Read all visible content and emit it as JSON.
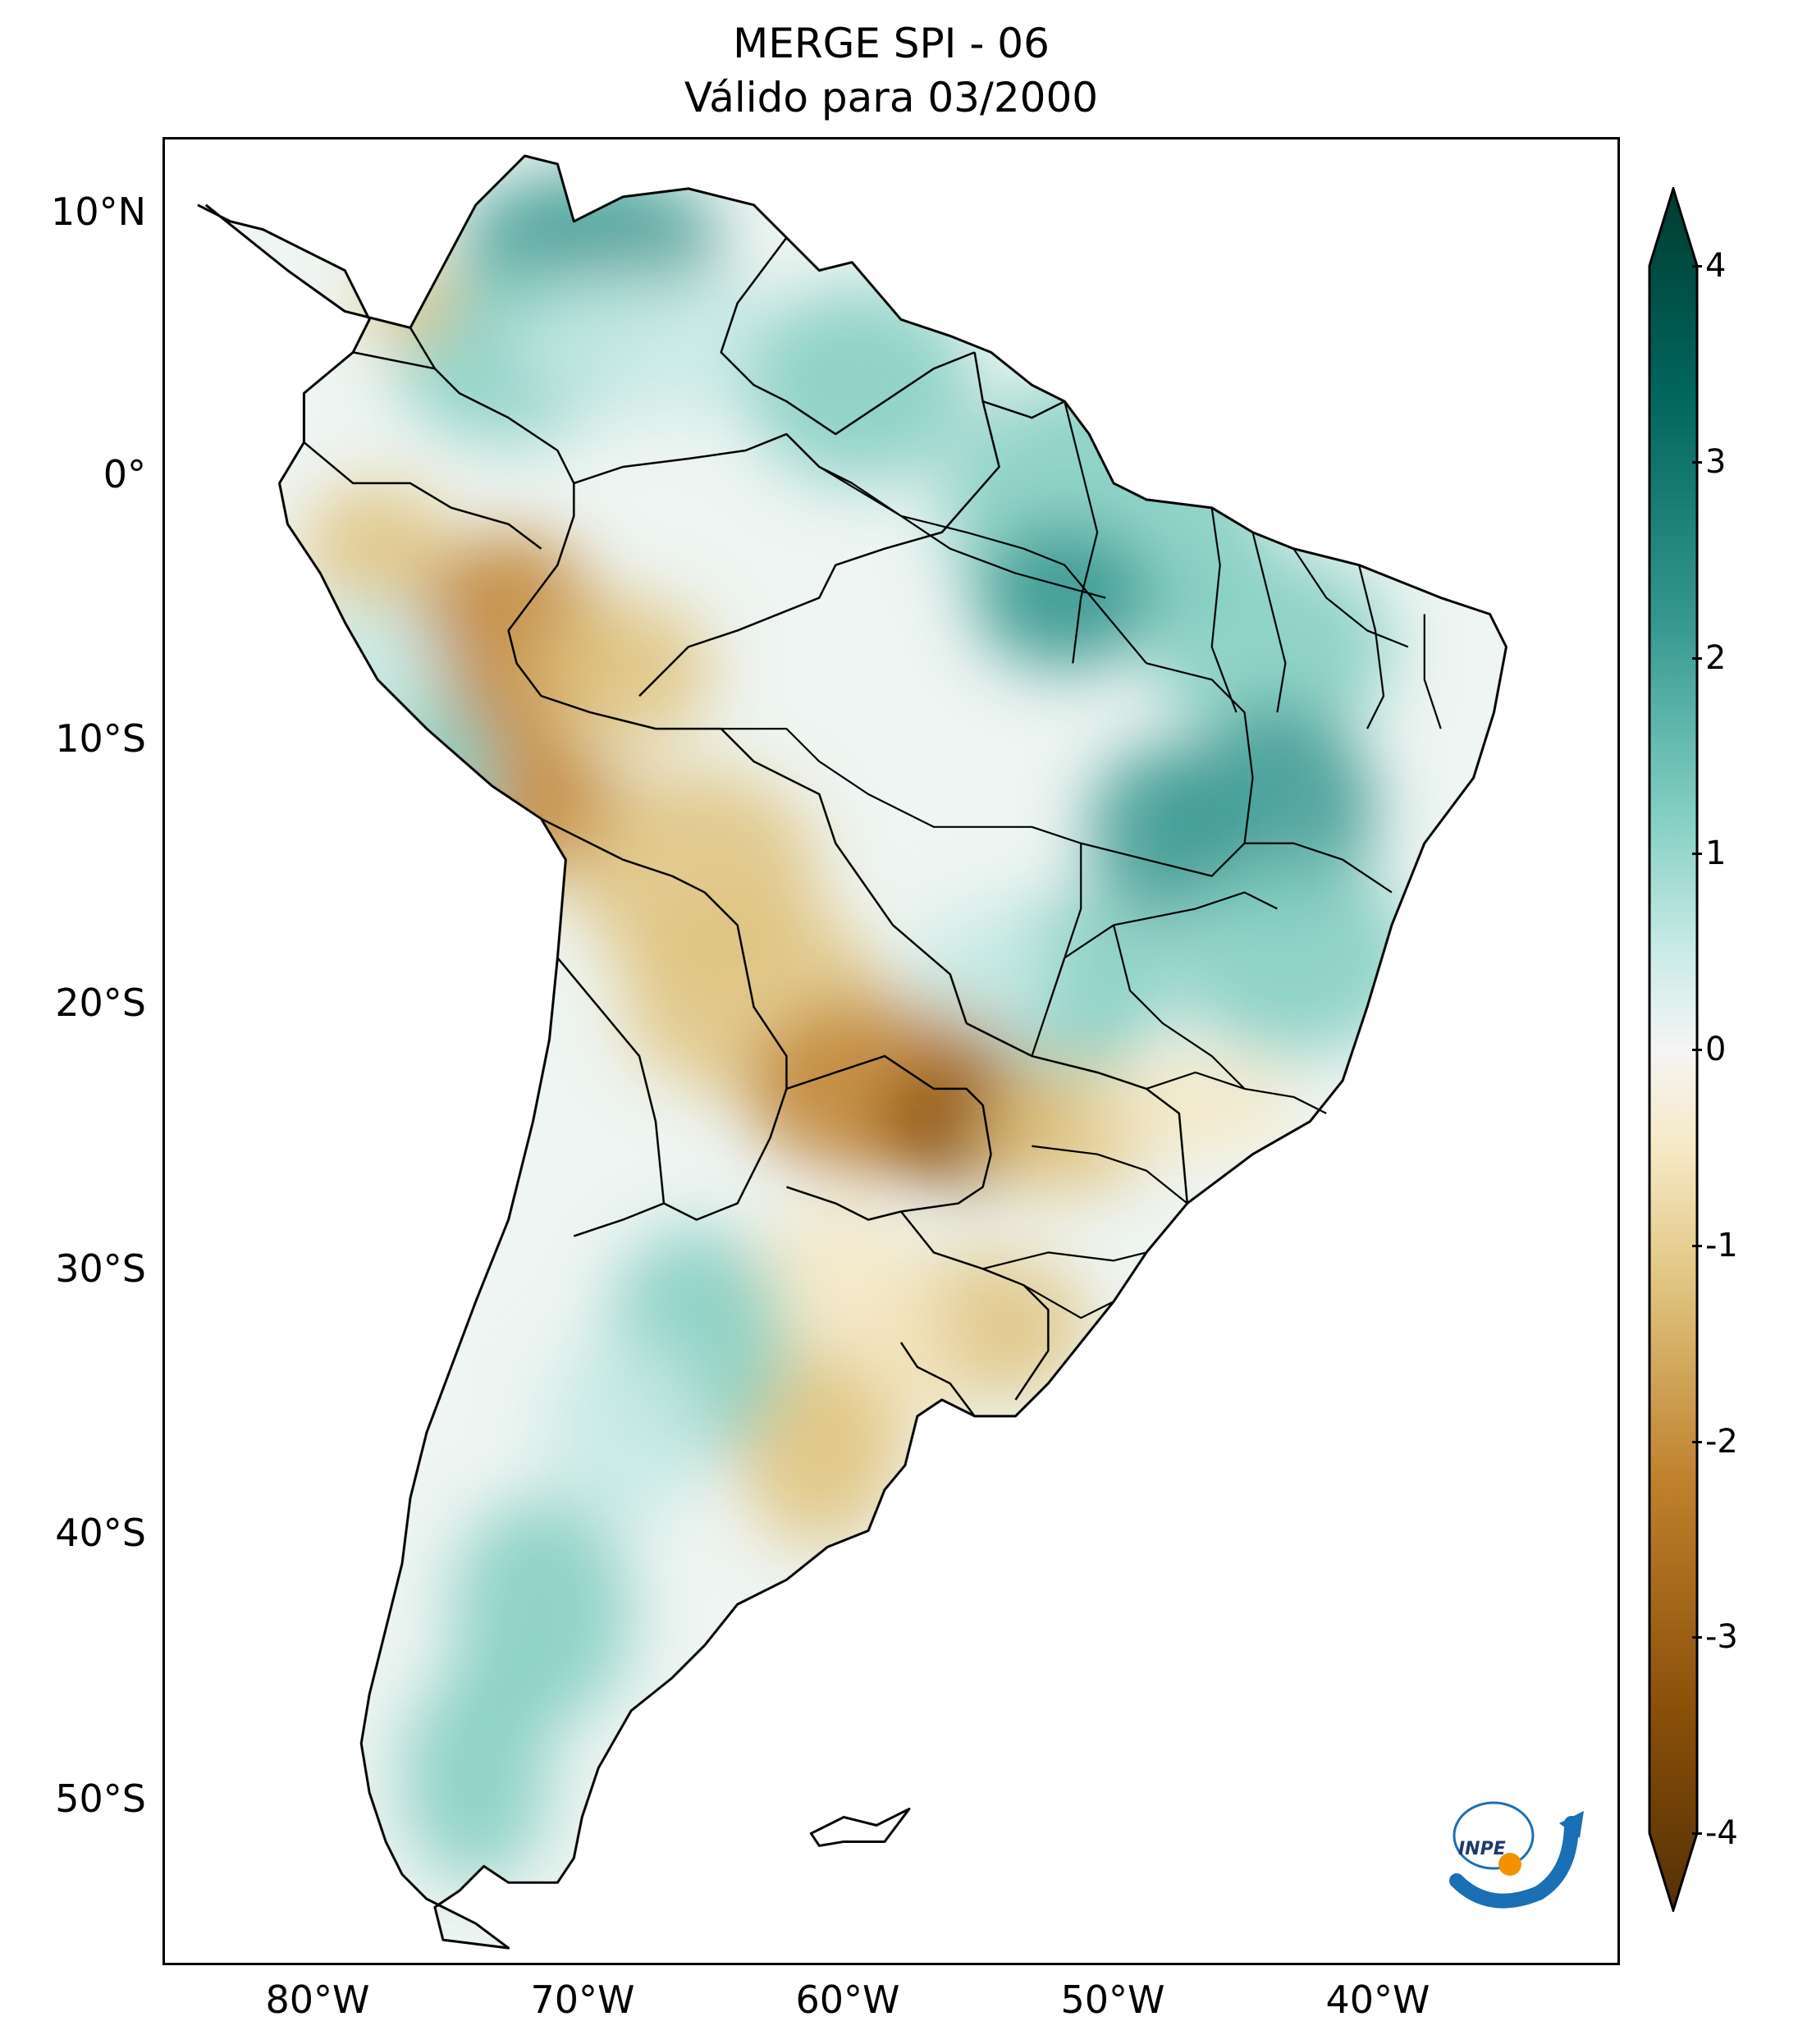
{
  "title": {
    "line1": "MERGE   SPI - 06",
    "line2": "Válido para 03/2000"
  },
  "axes": {
    "lat_labels": [
      "10°N",
      "0°",
      "10°S",
      "20°S",
      "30°S",
      "40°S",
      "50°S"
    ],
    "lon_labels": [
      "80°W",
      "70°W",
      "60°W",
      "50°W",
      "40°W"
    ]
  },
  "colorbar": {
    "ticks": [
      "4",
      "3",
      "2",
      "1",
      "0",
      "-1",
      "-2",
      "-3",
      "-4"
    ],
    "range": [
      -4,
      4
    ],
    "extend": "both",
    "colormap": "BrBG",
    "colors": {
      "dry_extreme": "#543005",
      "dry_strong": "#8c510a",
      "dry_moderate": "#bf812d",
      "dry_mild": "#dfc27d",
      "dry_slight": "#f6e8c3",
      "neutral": "#f5f5f5",
      "wet_slight": "#c7eae5",
      "wet_mild": "#80cdc1",
      "wet_moderate": "#35978f",
      "wet_strong": "#01665e",
      "wet_extreme": "#003c30"
    }
  },
  "map": {
    "region": "South America",
    "variable": "SPI - 06",
    "lon_range": [
      -85,
      -30
    ],
    "lat_range": [
      -56,
      13
    ]
  },
  "logo": {
    "text": "INPE"
  }
}
